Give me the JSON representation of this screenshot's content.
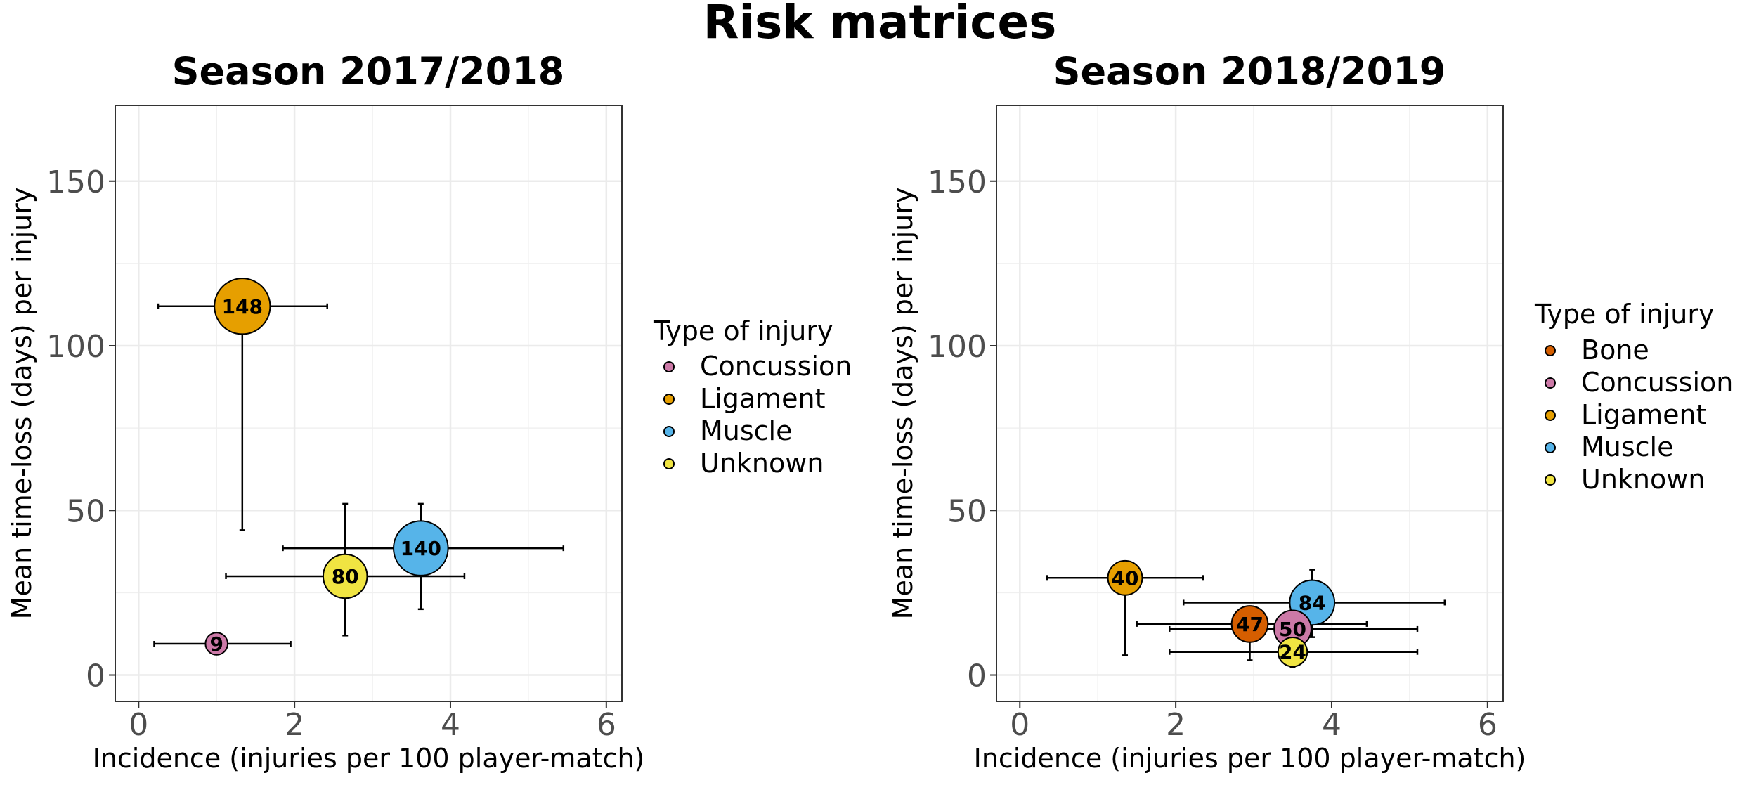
{
  "figure_title": "Risk matrices",
  "chart_data": [
    {
      "type": "scatter",
      "title": "Season 2017/2018",
      "xlabel": "Incidence (injuries per 100 player-match)",
      "ylabel": "Mean time-loss (days) per injury",
      "xlim": [
        -0.3,
        6.2
      ],
      "ylim": [
        -8,
        173
      ],
      "xticks": [
        0,
        2,
        4,
        6
      ],
      "yticks": [
        0,
        50,
        100,
        150
      ],
      "xtick_labels": [
        "0",
        "2",
        "4",
        "6"
      ],
      "ytick_labels": [
        "0",
        "50",
        "100",
        "150"
      ],
      "grid": true,
      "legend_title": "Type of injury",
      "legend": [
        {
          "label": "Concussion",
          "color": "#CC79A7"
        },
        {
          "label": "Ligament",
          "color": "#E69F00"
        },
        {
          "label": "Muscle",
          "color": "#56B4E9"
        },
        {
          "label": "Unknown",
          "color": "#F0E442"
        }
      ],
      "points": [
        {
          "type": "Concussion",
          "label": "9",
          "x": 1.0,
          "y": 9.5,
          "x_lo": 0.2,
          "x_hi": 1.95,
          "y_lo": 6.5,
          "y_hi": 12.5,
          "n": 9,
          "color": "#CC79A7"
        },
        {
          "type": "Ligament",
          "label": "148",
          "x": 1.33,
          "y": 112,
          "x_lo": 0.25,
          "x_hi": 2.42,
          "y_lo": 44,
          "y_hi": 119,
          "n": 148,
          "color": "#E69F00"
        },
        {
          "type": "Muscle",
          "label": "140",
          "x": 3.62,
          "y": 38.5,
          "x_lo": 1.85,
          "x_hi": 5.45,
          "y_lo": 20,
          "y_hi": 52,
          "n": 140,
          "color": "#56B4E9"
        },
        {
          "type": "Unknown",
          "label": "80",
          "x": 2.65,
          "y": 30,
          "x_lo": 1.12,
          "x_hi": 4.18,
          "y_lo": 12,
          "y_hi": 52,
          "n": 80,
          "color": "#F0E442"
        }
      ]
    },
    {
      "type": "scatter",
      "title": "Season 2018/2019",
      "xlabel": "Incidence (injuries per 100 player-match)",
      "ylabel": "Mean time-loss (days) per injury",
      "xlim": [
        -0.3,
        6.2
      ],
      "ylim": [
        -8,
        173
      ],
      "xticks": [
        0,
        2,
        4,
        6
      ],
      "yticks": [
        0,
        50,
        100,
        150
      ],
      "xtick_labels": [
        "0",
        "2",
        "4",
        "6"
      ],
      "ytick_labels": [
        "0",
        "50",
        "100",
        "150"
      ],
      "grid": true,
      "legend_title": "Type of injury",
      "legend": [
        {
          "label": "Bone",
          "color": "#D55E00"
        },
        {
          "label": "Concussion",
          "color": "#CC79A7"
        },
        {
          "label": "Ligament",
          "color": "#E69F00"
        },
        {
          "label": "Muscle",
          "color": "#56B4E9"
        },
        {
          "label": "Unknown",
          "color": "#F0E442"
        }
      ],
      "points": [
        {
          "type": "Ligament",
          "label": "40",
          "x": 1.35,
          "y": 29.5,
          "x_lo": 0.35,
          "x_hi": 2.35,
          "y_lo": 6,
          "y_hi": 30,
          "n": 40,
          "color": "#E69F00"
        },
        {
          "type": "Muscle",
          "label": "84",
          "x": 3.75,
          "y": 22,
          "x_lo": 2.1,
          "x_hi": 5.45,
          "y_lo": 11.5,
          "y_hi": 32,
          "n": 84,
          "color": "#56B4E9"
        },
        {
          "type": "Bone",
          "label": "47",
          "x": 2.95,
          "y": 15.5,
          "x_lo": 1.5,
          "x_hi": 4.45,
          "y_lo": 4.5,
          "y_hi": 19,
          "n": 47,
          "color": "#D55E00"
        },
        {
          "type": "Concussion",
          "label": "50",
          "x": 3.5,
          "y": 14,
          "x_lo": 1.92,
          "x_hi": 5.1,
          "y_lo": 8,
          "y_hi": 20,
          "n": 50,
          "color": "#CC79A7"
        },
        {
          "type": "Unknown",
          "label": "24",
          "x": 3.5,
          "y": 7,
          "x_lo": 1.92,
          "x_hi": 5.1,
          "y_lo": 2.5,
          "y_hi": 12,
          "n": 24,
          "color": "#F0E442"
        }
      ]
    }
  ]
}
